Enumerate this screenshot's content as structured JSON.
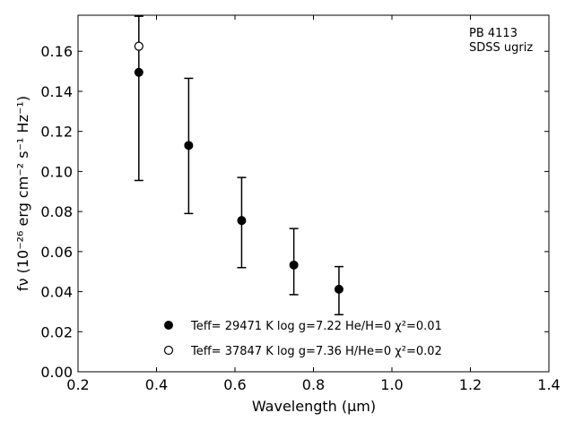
{
  "chart_data": {
    "type": "scatter",
    "annotation": [
      "PB 4113",
      "SDSS ugriz"
    ],
    "xlabel": "Wavelength (μm)",
    "ylabel": "fν (10⁻²⁶ erg cm⁻² s⁻¹ Hz⁻¹)",
    "xlim": [
      0.2,
      1.4
    ],
    "ylim": [
      0.0,
      0.178
    ],
    "xticks": [
      "0.2",
      "0.4",
      "0.6",
      "0.8",
      "1.0",
      "1.2",
      "1.4"
    ],
    "yticks": [
      "0.00",
      "0.02",
      "0.04",
      "0.06",
      "0.08",
      "0.10",
      "0.12",
      "0.14",
      "0.16"
    ],
    "grid": false,
    "legend_position": "bottom-center",
    "observed": {
      "x": [
        0.355,
        0.482,
        0.617,
        0.75,
        0.865
      ],
      "yerr_low": [
        0.0955,
        0.079,
        0.052,
        0.0385,
        0.0285
      ],
      "yerr_high": [
        0.1775,
        0.1465,
        0.097,
        0.0715,
        0.0525
      ]
    },
    "series": [
      {
        "name": "Teff= 29471 K  log g=7.22  He/H=0  χ²=0.01",
        "marker": "filled-circle",
        "color": "#000000",
        "x": [
          0.355,
          0.482,
          0.617,
          0.75,
          0.865
        ],
        "y": [
          0.1495,
          0.113,
          0.0755,
          0.0533,
          0.0412
        ]
      },
      {
        "name": "Teff= 37847 K  log g=7.36  H/He=0  χ²=0.02",
        "marker": "open-circle",
        "color": "#000000",
        "x": [
          0.355
        ],
        "y": [
          0.1625
        ]
      }
    ]
  }
}
